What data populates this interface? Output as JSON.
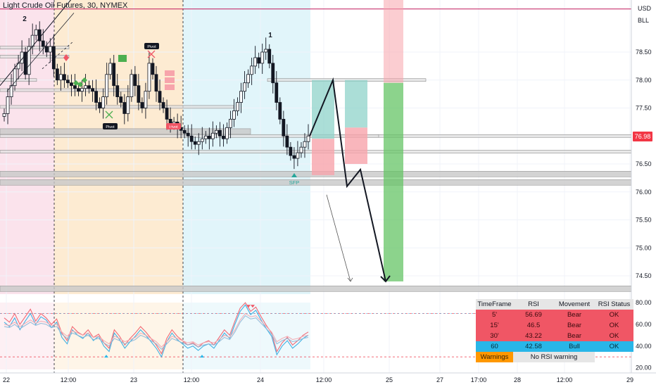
{
  "header": {
    "title": "Light Crude Oil Futures, 30, NYMEX",
    "currency": "USD",
    "unit": "BLL"
  },
  "current_price": "76.98",
  "wave_labels": [
    "2",
    "1"
  ],
  "pivot_label": "Pivot",
  "sfp_label": "SFP",
  "chart_data": [
    {
      "type": "candlestick",
      "title": "Light Crude Oil Futures, 30, NYMEX",
      "ylabel": "USD",
      "ylim": [
        74.2,
        79.3
      ],
      "y_ticks": [
        "78.50",
        "78.00",
        "77.50",
        "77.00",
        "76.50",
        "76.00",
        "75.50",
        "75.00",
        "74.50"
      ],
      "x_ticks": [
        "22",
        "12:00",
        "23",
        "12:00",
        "24",
        "12:00",
        "25",
        "27",
        "17:00",
        "28",
        "12:00",
        "29"
      ],
      "horizontal_levels": [
        79.27,
        78.0,
        77.52,
        77.08,
        77.0,
        76.72,
        76.32,
        76.17,
        74.27
      ],
      "close_series": [
        77.4,
        77.7,
        77.9,
        78.2,
        78.3,
        78.5,
        78.1,
        78.6,
        78.8,
        78.9,
        78.7,
        78.6,
        78.5,
        78.6,
        78.2,
        78.0,
        78.1,
        78.0,
        77.95,
        77.9,
        77.85,
        77.8,
        77.85,
        77.9,
        77.85,
        77.8,
        77.6,
        77.5,
        77.7,
        78.1,
        78.3,
        77.9,
        77.7,
        77.6,
        77.4,
        77.7,
        78.1,
        77.9,
        77.6,
        77.5,
        77.8,
        78.3,
        78.1,
        77.8,
        77.6,
        77.5,
        77.3,
        77.2,
        77.25,
        77.15,
        77.1,
        77.05,
        77.0,
        76.9,
        76.85,
        76.9,
        76.95,
        77.0,
        76.95,
        77.05,
        77.1,
        77.0,
        76.95,
        77.15,
        77.3,
        77.45,
        77.6,
        77.8,
        77.95,
        78.1,
        78.25,
        78.4,
        78.3,
        78.5,
        78.55,
        78.3,
        77.95,
        77.6,
        77.3,
        77.0,
        76.8,
        76.65,
        76.6,
        76.7,
        76.8,
        76.9,
        77.0
      ],
      "projections": [
        {
          "from": 77.0,
          "to": 78.0
        },
        {
          "from": 78.0,
          "to": 76.1
        },
        {
          "from": 76.1,
          "to": 76.4
        },
        {
          "from": 76.4,
          "to": 74.4
        }
      ],
      "position_zones": [
        {
          "target": 78.0,
          "entry": 76.95,
          "stop": 76.3
        },
        {
          "target": 78.0,
          "entry": 77.15,
          "stop": 76.5
        },
        {
          "target": 77.95,
          "entry": 79.3,
          "stop": 74.4
        }
      ]
    },
    {
      "type": "line",
      "title": "RSI",
      "ylim": [
        20,
        85
      ],
      "y_ticks": [
        "80.00",
        "60.00",
        "40.00",
        "20.00"
      ],
      "reference_levels": [
        70,
        30
      ],
      "series": [
        {
          "color": "#2ea8e0",
          "values": [
            62,
            58,
            66,
            55,
            63,
            70,
            60,
            67,
            64,
            57,
            62,
            48,
            42,
            55,
            50,
            47,
            52,
            45,
            49,
            40,
            35,
            52,
            46,
            38,
            44,
            49,
            55,
            50,
            44,
            38,
            30,
            44,
            52,
            46,
            42,
            38,
            40,
            36,
            40,
            42,
            38,
            45,
            52,
            47,
            60,
            72,
            78,
            69,
            73,
            64,
            56,
            49,
            32,
            40,
            45,
            38,
            42,
            47,
            50
          ]
        },
        {
          "color": "#f05a67",
          "values": [
            66,
            62,
            70,
            60,
            67,
            74,
            63,
            70,
            66,
            60,
            65,
            52,
            45,
            58,
            53,
            50,
            55,
            48,
            51,
            43,
            38,
            55,
            49,
            41,
            47,
            52,
            58,
            53,
            47,
            41,
            33,
            47,
            55,
            49,
            45,
            41,
            43,
            39,
            43,
            45,
            41,
            48,
            55,
            50,
            63,
            75,
            80,
            72,
            76,
            67,
            59,
            52,
            35,
            43,
            48,
            41,
            45,
            50,
            53
          ]
        },
        {
          "color": "#8fb7d6",
          "values": [
            58,
            57,
            60,
            56,
            59,
            62,
            59,
            61,
            60,
            57,
            58,
            51,
            47,
            52,
            50,
            48,
            50,
            46,
            47,
            43,
            40,
            47,
            45,
            42,
            44,
            46,
            50,
            48,
            45,
            42,
            37,
            42,
            47,
            45,
            43,
            41,
            42,
            39,
            41,
            42,
            41,
            44,
            48,
            46,
            53,
            62,
            68,
            65,
            66,
            61,
            56,
            51,
            42,
            45,
            47,
            44,
            45,
            47,
            48
          ]
        },
        {
          "color": "#f2a9b0",
          "values": [
            60,
            59,
            62,
            58,
            61,
            64,
            61,
            63,
            62,
            59,
            60,
            53,
            49,
            54,
            52,
            50,
            52,
            48,
            49,
            45,
            42,
            49,
            47,
            44,
            46,
            48,
            52,
            50,
            47,
            44,
            39,
            44,
            49,
            47,
            45,
            43,
            44,
            41,
            43,
            44,
            43,
            46,
            50,
            48,
            55,
            64,
            70,
            67,
            68,
            63,
            58,
            53,
            44,
            47,
            49,
            46,
            47,
            49,
            50
          ]
        }
      ]
    }
  ],
  "rsi_table": {
    "headers": [
      "TimeFrame",
      "RSI",
      "Movement",
      "RSI Status"
    ],
    "rows": [
      {
        "tf": "5'",
        "rsi": "56.69",
        "movement": "Bear",
        "status": "OK",
        "trend": "bear"
      },
      {
        "tf": "15'",
        "rsi": "46.5",
        "movement": "Bear",
        "status": "OK",
        "trend": "bear"
      },
      {
        "tf": "30'",
        "rsi": "43.22",
        "movement": "Bear",
        "status": "OK",
        "trend": "bear"
      },
      {
        "tf": "60",
        "rsi": "42.58",
        "movement": "Bull",
        "status": "OK",
        "trend": "bull"
      }
    ],
    "warnings_label": "Warnings",
    "warnings_value": "No RSI warning"
  },
  "colors": {
    "session_pink": "#fbe3ec",
    "session_orange": "#fdebd2",
    "session_cyan": "#e1f5fa",
    "candle": "#131722",
    "rsi_bear": "#f05665",
    "rsi_bull": "#29b6e8",
    "warning": "#ff9800",
    "price_tag": "#f23645"
  }
}
